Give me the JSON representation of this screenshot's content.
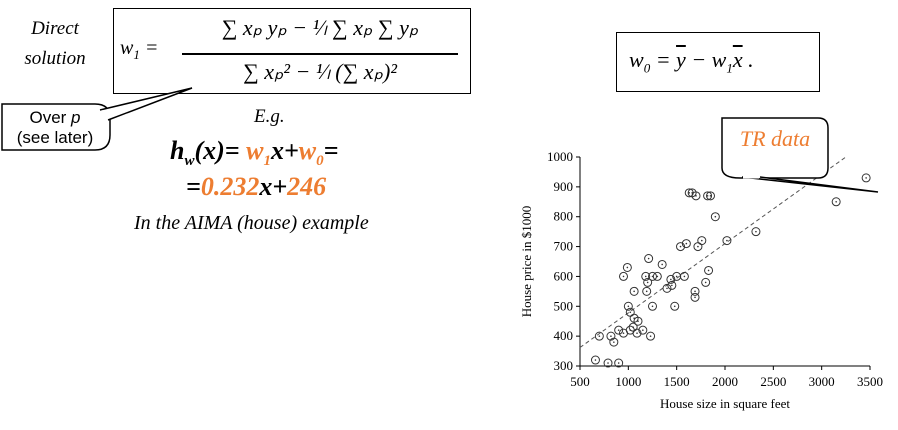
{
  "left_label": {
    "line1": "Direct",
    "line2": "solution"
  },
  "formula1": {
    "lhs": "w",
    "lhs_sub": "1",
    "numerator": "∑ xₚ yₚ − ¹⁄ₗ ∑ xₚ ∑ yₚ",
    "denominator": "∑ xₚ² − ¹⁄ₗ (∑ xₚ)²"
  },
  "formula2": {
    "text": "w0 = y̅ − w1 x̅ ."
  },
  "callout": {
    "line1": "Over ",
    "var": "p",
    "line2": "(see later)"
  },
  "eg": "E.g.",
  "model": {
    "h": "h",
    "h_sub": "w",
    "h_arg": "(x)= ",
    "w1": "w",
    "w1_sub": "1",
    "x": "x+",
    "w0": "w",
    "w0_sub": "0",
    "end": "=",
    "line2_prefix": "=",
    "slope": "0.232",
    "x2": "x+",
    "intercept": "246"
  },
  "example_caption": "In the AIMA (house) example",
  "tr_callout": "TR data",
  "colors": {
    "accent": "#ed7d31",
    "points": "#333333",
    "fit": "#555555"
  },
  "chart_data": {
    "type": "scatter",
    "title": "",
    "xlabel": "House size in square feet",
    "ylabel": "House price in $1000",
    "xlim": [
      500,
      3500
    ],
    "ylim": [
      300,
      1000
    ],
    "xticks": [
      500,
      1000,
      1500,
      2000,
      2500,
      3000,
      3500
    ],
    "yticks": [
      300,
      400,
      500,
      600,
      700,
      800,
      900,
      1000
    ],
    "grid": false,
    "series": [
      {
        "marker": "open-circle",
        "x": [
          660,
          700,
          790,
          820,
          850,
          900,
          950,
          1000,
          1020,
          1050,
          1060,
          1090,
          1100,
          1150,
          1180,
          1190,
          1200,
          1210,
          1230,
          1250,
          1250,
          1300,
          1350,
          1400,
          1440,
          1450,
          1480,
          1500,
          1540,
          1580,
          1600,
          1630,
          1660,
          1690,
          1690,
          1700,
          1720,
          1760,
          1800,
          1820,
          1830,
          1850,
          1900,
          2020,
          2320,
          3150,
          3460,
          990,
          950,
          1060,
          900,
          1020
        ],
        "y": [
          320,
          400,
          310,
          400,
          380,
          420,
          410,
          500,
          420,
          430,
          460,
          410,
          450,
          420,
          600,
          550,
          580,
          660,
          400,
          600,
          500,
          600,
          640,
          560,
          590,
          570,
          500,
          600,
          700,
          600,
          710,
          880,
          880,
          550,
          530,
          870,
          700,
          720,
          580,
          870,
          620,
          870,
          800,
          720,
          750,
          850,
          930,
          630,
          600,
          550,
          310,
          480
        ]
      }
    ],
    "fit_line": {
      "style": "dashed",
      "slope": 0.232,
      "intercept": 246,
      "x_range": [
        500,
        3250
      ]
    }
  }
}
